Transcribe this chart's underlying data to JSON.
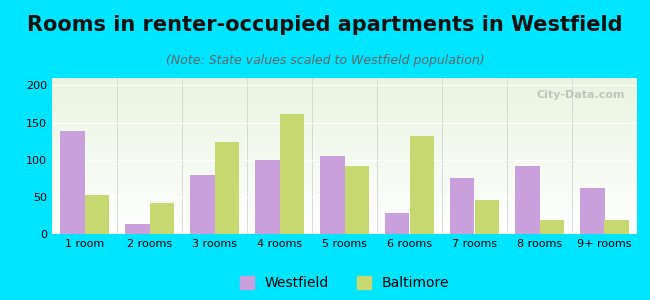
{
  "title": "Rooms in renter-occupied apartments in Westfield",
  "subtitle": "(Note: State values scaled to Westfield population)",
  "categories": [
    "1 room",
    "2 rooms",
    "3 rooms",
    "4 rooms",
    "5 rooms",
    "6 rooms",
    "7 rooms",
    "8 rooms",
    "9+ rooms"
  ],
  "westfield": [
    138,
    13,
    79,
    99,
    105,
    28,
    75,
    91,
    62
  ],
  "baltimore": [
    53,
    42,
    124,
    162,
    92,
    132,
    46,
    19,
    19
  ],
  "westfield_color": "#c9a0dc",
  "baltimore_color": "#c8d870",
  "background_outer": "#00e5ff",
  "background_inner_top": "#e8f5e0",
  "background_inner_bottom": "#ffffff",
  "title_fontsize": 15,
  "subtitle_fontsize": 9,
  "tick_fontsize": 8,
  "legend_fontsize": 10,
  "ylim": [
    0,
    210
  ],
  "yticks": [
    0,
    50,
    100,
    150,
    200
  ],
  "bar_width": 0.38,
  "watermark": "City-Data.com"
}
